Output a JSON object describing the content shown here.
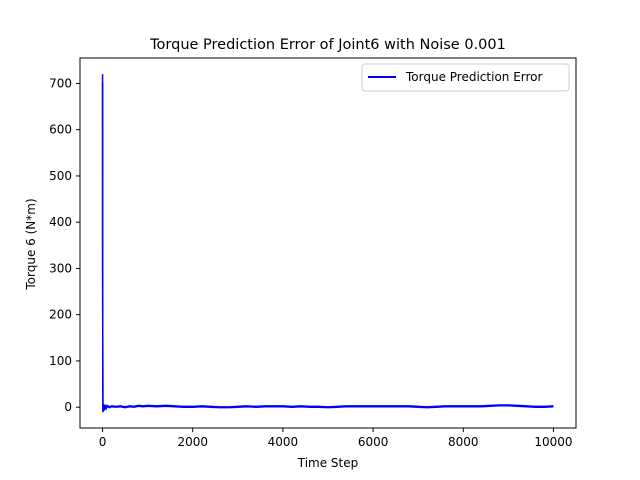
{
  "chart_data": {
    "type": "line",
    "title": "Torque Prediction Error of Joint6 with Noise 0.001",
    "xlabel": "Time Step",
    "ylabel": "Torque 6 (N*m)",
    "xlim": [
      -500,
      10500
    ],
    "ylim": [
      -45,
      755
    ],
    "xticks": [
      0,
      2000,
      4000,
      6000,
      8000,
      10000
    ],
    "yticks": [
      0,
      100,
      200,
      300,
      400,
      500,
      600,
      700
    ],
    "grid": false,
    "legend_position": "top-right",
    "series": [
      {
        "name": "Torque Prediction Error",
        "color": "#0000ff",
        "x": [
          0,
          1,
          2,
          8,
          15,
          25,
          40,
          60,
          80,
          100,
          150,
          200,
          300,
          400,
          500,
          600,
          700,
          800,
          900,
          1000,
          1200,
          1400,
          1600,
          1800,
          2000,
          2200,
          2400,
          2600,
          2800,
          3000,
          3200,
          3400,
          3600,
          3800,
          4000,
          4200,
          4400,
          4600,
          4800,
          5000,
          5200,
          5400,
          5600,
          5800,
          6000,
          6200,
          6400,
          6600,
          6800,
          7000,
          7200,
          7400,
          7600,
          7800,
          8000,
          8200,
          8400,
          8600,
          8800,
          9000,
          9200,
          9400,
          9600,
          9800,
          10000
        ],
        "y": [
          720,
          700,
          300,
          -10,
          -5,
          5,
          -6,
          3,
          -4,
          2,
          -1,
          1,
          0,
          1,
          -1,
          1,
          0,
          2,
          1,
          2,
          1,
          2,
          1,
          0,
          0,
          1,
          0,
          -1,
          -1,
          0,
          1,
          0,
          1,
          1,
          1,
          0,
          1,
          0,
          0,
          -1,
          0,
          1,
          1,
          1,
          1,
          1,
          1,
          1,
          1,
          0,
          -1,
          0,
          1,
          1,
          1,
          1,
          1,
          2,
          3,
          3,
          2,
          1,
          0,
          0,
          1
        ]
      }
    ]
  }
}
